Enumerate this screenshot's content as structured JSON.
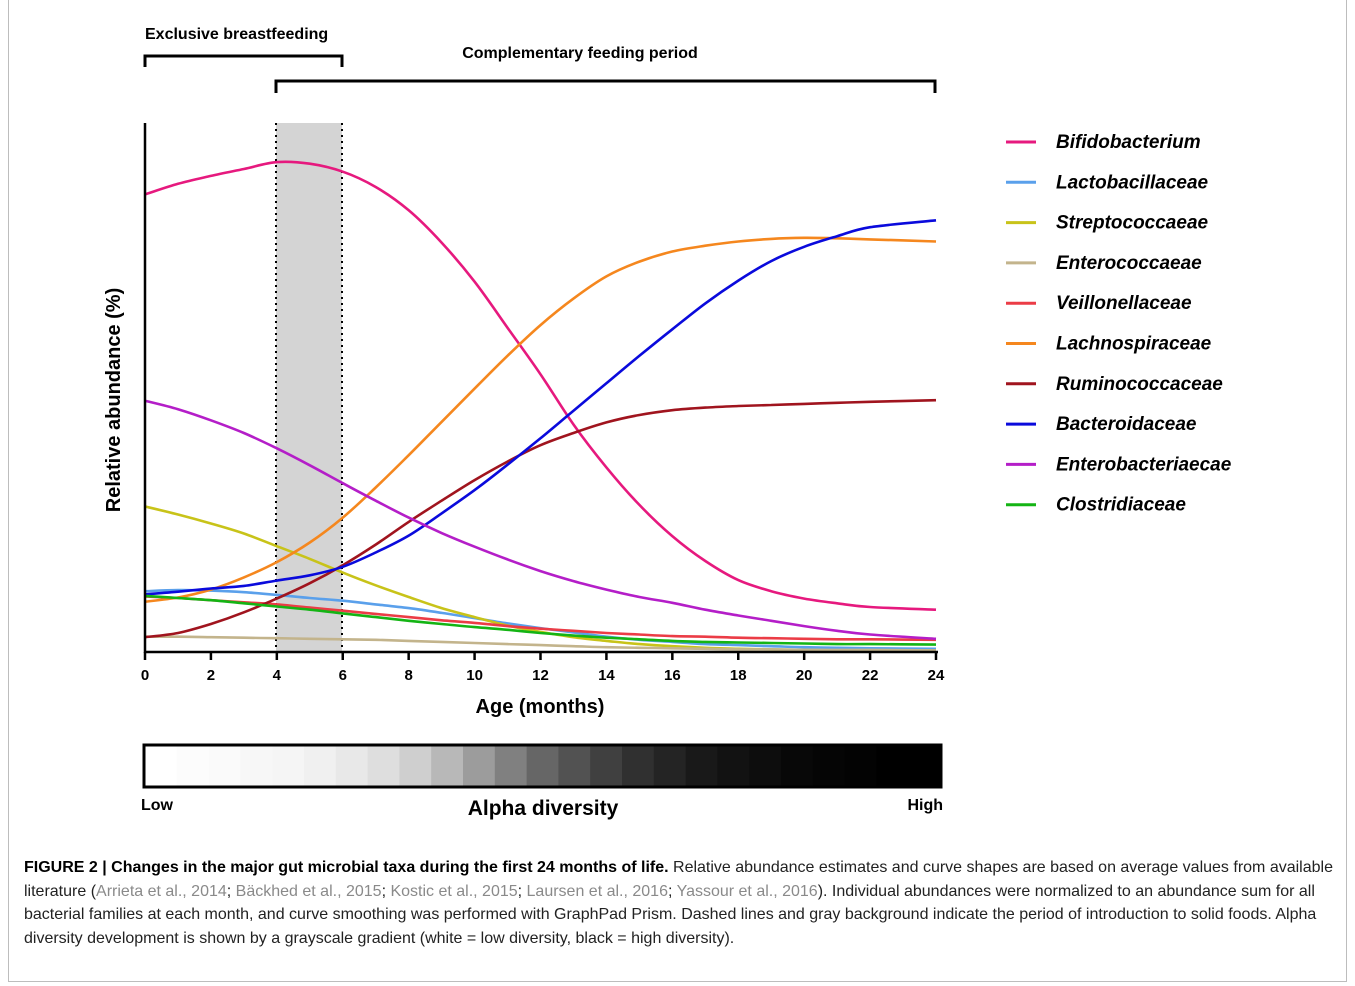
{
  "periods": {
    "exclusive": {
      "label": "Exclusive breastfeeding",
      "start": 0,
      "end": 6
    },
    "complementary": {
      "label": "Complementary feeding period",
      "start": 4,
      "end": 24
    },
    "solid_food_window": [
      4,
      6
    ]
  },
  "chart_data": {
    "type": "line",
    "title": "",
    "xlabel": "Age (months)",
    "ylabel": "Relative abundance (%)",
    "xlim": [
      0,
      24
    ],
    "ylim": [
      0,
      100
    ],
    "xticks": [
      "0",
      "2",
      "4",
      "6",
      "8",
      "10",
      "12",
      "14",
      "16",
      "18",
      "20",
      "22",
      "24"
    ],
    "grid": false,
    "legend": "right",
    "x": [
      0,
      1,
      2,
      3,
      4,
      5,
      6,
      7,
      8,
      9,
      10,
      11,
      12,
      13,
      14,
      15,
      16,
      17,
      18,
      19,
      20,
      21,
      22,
      24
    ],
    "series": [
      {
        "name": "Bifidobacterium",
        "color": "#e6197e",
        "values": [
          86.5,
          88.5,
          90.0,
          91.3,
          92.6,
          92.3,
          90.8,
          87.9,
          83.5,
          77.4,
          70.0,
          61.3,
          52.5,
          43.0,
          34.9,
          27.8,
          21.9,
          17.2,
          13.6,
          11.5,
          10.1,
          9.2,
          8.5,
          8.0
        ]
      },
      {
        "name": "Lactobacillaceae",
        "color": "#5aa0eb",
        "values": [
          11.5,
          11.7,
          11.6,
          11.3,
          10.8,
          10.2,
          9.7,
          9.0,
          8.3,
          7.4,
          6.4,
          5.4,
          4.5,
          3.7,
          2.9,
          2.3,
          1.9,
          1.5,
          1.3,
          1.1,
          0.9,
          0.8,
          0.7,
          0.6
        ]
      },
      {
        "name": "Streptococcaeae",
        "color": "#c8c319",
        "values": [
          27.5,
          26.0,
          24.3,
          22.4,
          20.0,
          17.6,
          15.0,
          12.6,
          10.4,
          8.3,
          6.6,
          5.0,
          3.8,
          2.8,
          2.1,
          1.5,
          1.1,
          0.8,
          0.6,
          0.5,
          0.4,
          0.3,
          0.3,
          0.3
        ]
      },
      {
        "name": "Enterococcaeae",
        "color": "#c3b48c",
        "values": [
          2.9,
          2.9,
          2.8,
          2.7,
          2.6,
          2.5,
          2.4,
          2.3,
          2.1,
          1.9,
          1.7,
          1.5,
          1.3,
          1.1,
          0.9,
          0.8,
          0.7,
          0.6,
          0.5,
          0.5,
          0.4,
          0.4,
          0.4,
          0.3
        ]
      },
      {
        "name": "Veillonellaceae",
        "color": "#eb3c46",
        "values": [
          10.5,
          10.2,
          9.8,
          9.4,
          9.0,
          8.4,
          7.8,
          7.2,
          6.6,
          6.0,
          5.5,
          4.9,
          4.4,
          4.0,
          3.6,
          3.3,
          3.0,
          2.9,
          2.7,
          2.6,
          2.5,
          2.4,
          2.4,
          2.3
        ]
      },
      {
        "name": "Lachnospiraceae",
        "color": "#f5871e",
        "values": [
          9.5,
          10.3,
          11.8,
          14.1,
          17.0,
          20.7,
          25.4,
          31.1,
          37.2,
          43.5,
          49.8,
          56.0,
          61.8,
          66.8,
          71.0,
          73.8,
          75.7,
          76.8,
          77.6,
          78.1,
          78.3,
          78.2,
          78.0,
          77.6
        ]
      },
      {
        "name": "Ruminococcaceae",
        "color": "#a0141e",
        "values": [
          2.8,
          3.6,
          5.3,
          7.5,
          10.1,
          13.0,
          16.4,
          20.3,
          24.6,
          28.6,
          32.5,
          36.0,
          39.1,
          41.4,
          43.4,
          44.8,
          45.7,
          46.2,
          46.5,
          46.7,
          46.9,
          47.1,
          47.3,
          47.6
        ]
      },
      {
        "name": "Bacteroidaceae",
        "color": "#0a0adc",
        "values": [
          10.9,
          11.4,
          12.0,
          12.5,
          13.5,
          14.5,
          16.1,
          18.8,
          22.0,
          26.2,
          30.6,
          35.4,
          40.4,
          45.6,
          50.8,
          56.0,
          61.0,
          65.9,
          70.2,
          73.9,
          76.6,
          78.6,
          80.3,
          81.6
        ]
      },
      {
        "name": "Enterobacteriaecae",
        "color": "#b41ec8",
        "values": [
          47.5,
          45.9,
          43.8,
          41.4,
          38.5,
          35.3,
          31.9,
          28.6,
          25.4,
          22.5,
          19.9,
          17.5,
          15.3,
          13.4,
          11.8,
          10.4,
          9.3,
          8.0,
          6.9,
          5.9,
          4.9,
          4.0,
          3.3,
          2.5
        ]
      },
      {
        "name": "Clostridiaceae",
        "color": "#14b414",
        "values": [
          10.6,
          10.2,
          9.8,
          9.2,
          8.6,
          8.0,
          7.3,
          6.6,
          5.9,
          5.3,
          4.7,
          4.2,
          3.6,
          3.1,
          2.7,
          2.4,
          2.1,
          1.9,
          1.8,
          1.7,
          1.6,
          1.5,
          1.5,
          1.4
        ]
      }
    ]
  },
  "diversity": {
    "title": "Alpha diversity",
    "low_label": "Low",
    "high_label": "High",
    "levels": [
      0.0,
      0.01,
      0.02,
      0.03,
      0.04,
      0.06,
      0.09,
      0.13,
      0.19,
      0.28,
      0.39,
      0.5,
      0.6,
      0.68,
      0.75,
      0.81,
      0.86,
      0.9,
      0.93,
      0.95,
      0.97,
      0.98,
      0.99,
      1.0,
      1.0
    ]
  },
  "caption": {
    "figure_label": "FIGURE 2 | Changes in the major gut microbial taxa during the first 24 months of life.",
    "text1": " Relative abundance estimates and curve shapes are based on average values from available literature (",
    "refs": [
      "Arrieta et al., 2014",
      "Bäckhed et al., 2015",
      "Kostic et al., 2015",
      "Laursen et al., 2016",
      "Yassour et al., 2016"
    ],
    "text2": "). Individual abundances were normalized to an abundance sum for all bacterial families at each month, and curve smoothing was performed with GraphPad Prism. Dashed lines and gray background indicate the period of introduction to solid foods. Alpha diversity development is shown by a grayscale gradient (white = low diversity, black = high diversity)."
  }
}
